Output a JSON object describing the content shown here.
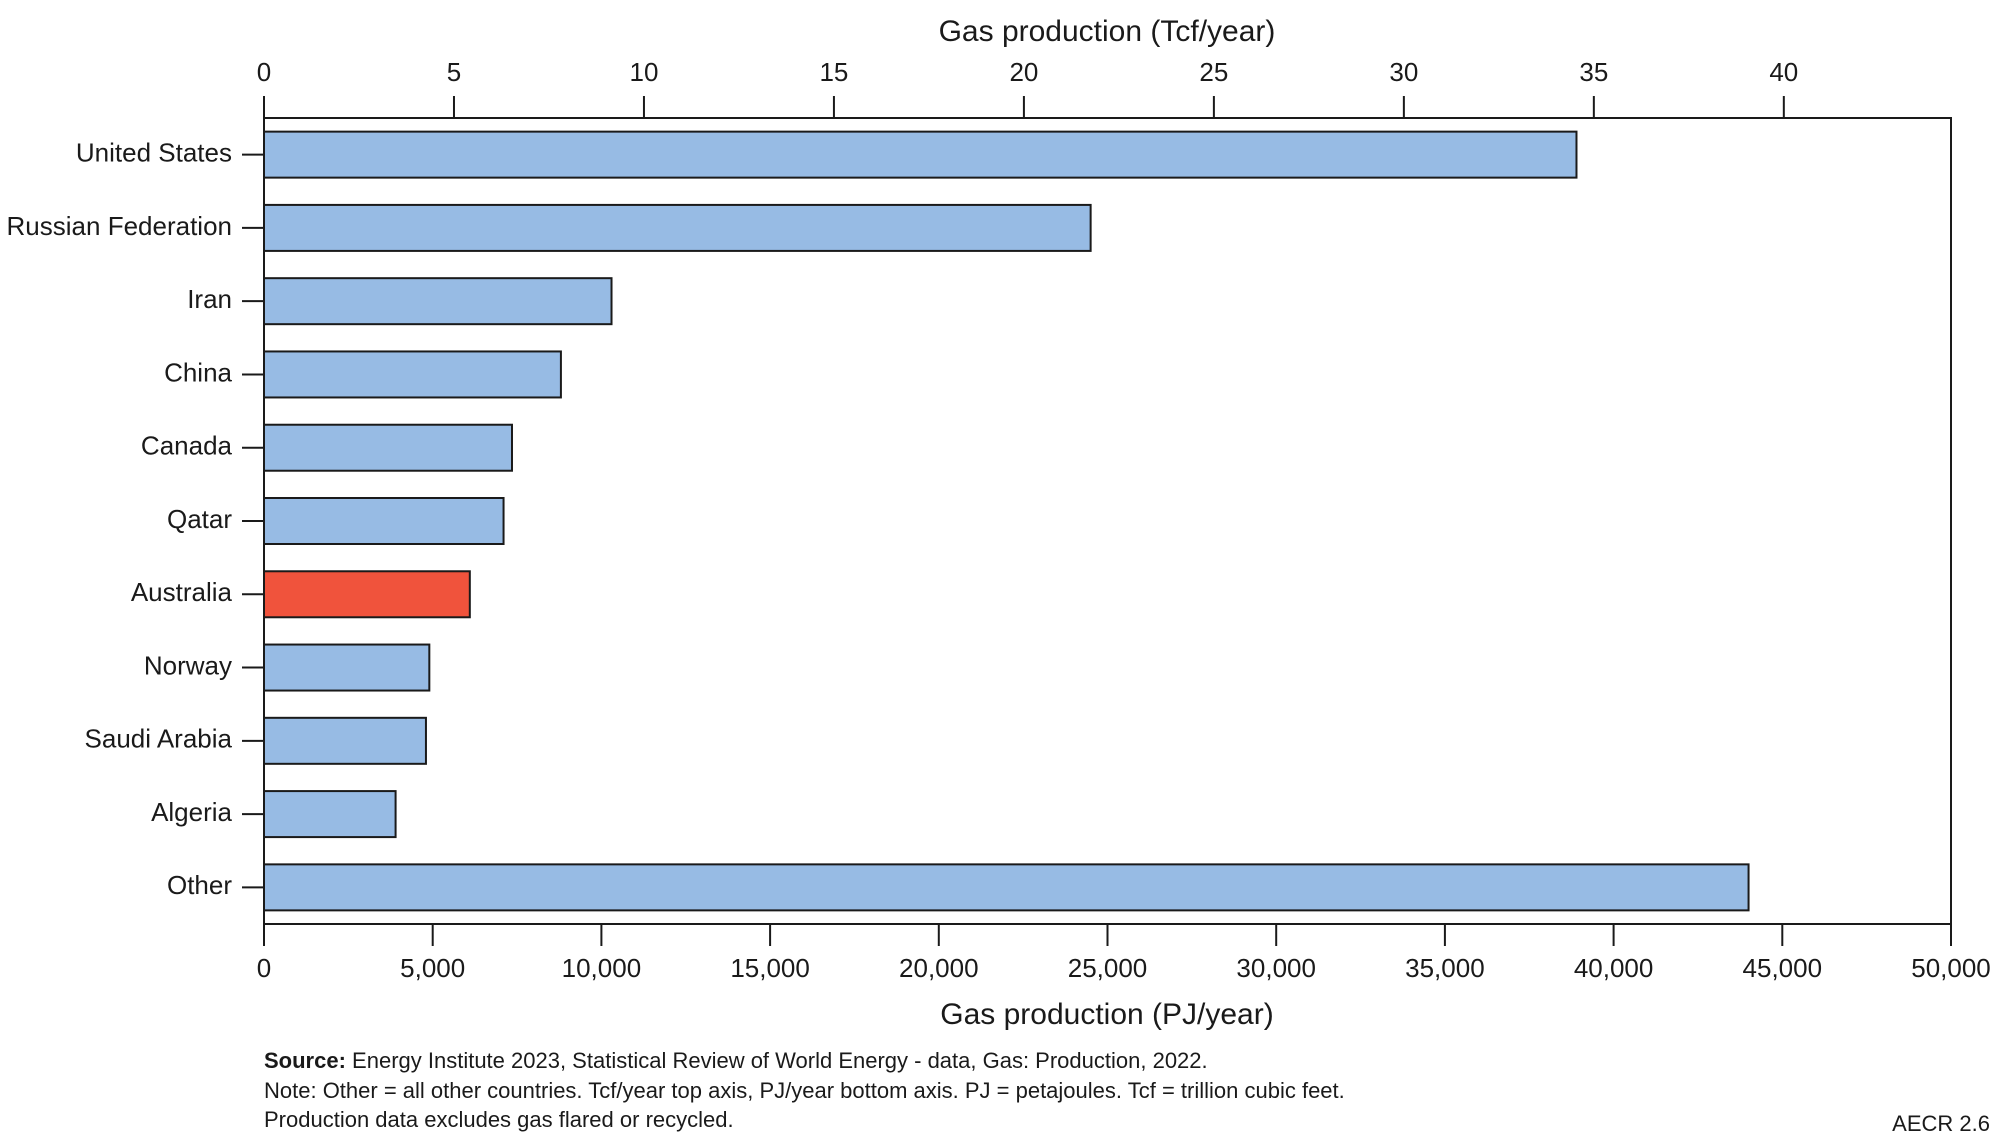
{
  "chart_data": {
    "type": "hbar",
    "title": "Gas production (Tcf/year)",
    "xlabel": "Gas production (PJ/year)",
    "categories": [
      "United States",
      "Russian Federation",
      "Iran",
      "China",
      "Canada",
      "Qatar",
      "Australia",
      "Norway",
      "Saudi Arabia",
      "Algeria",
      "Other"
    ],
    "values": [
      38900,
      24500,
      10300,
      8800,
      7350,
      7100,
      6100,
      4900,
      4800,
      3900,
      44000
    ],
    "colors": [
      "#97bbe4",
      "#97bbe4",
      "#97bbe4",
      "#97bbe4",
      "#97bbe4",
      "#97bbe4",
      "#f0533c",
      "#97bbe4",
      "#97bbe4",
      "#97bbe4",
      "#97bbe4"
    ],
    "xlim": [
      0,
      50000
    ],
    "xticks": [
      0,
      {
        "value": 5000,
        "label": "5,000"
      },
      {
        "value": 10000,
        "label": "10,000"
      },
      {
        "value": 15000,
        "label": "15,000"
      },
      {
        "value": 20000,
        "label": "20,000"
      },
      {
        "value": 25000,
        "label": "25,000"
      },
      {
        "value": 30000,
        "label": "30,000"
      },
      {
        "value": 35000,
        "label": "35,000"
      },
      {
        "value": 40000,
        "label": "40,000"
      },
      {
        "value": 45000,
        "label": "45,000"
      },
      {
        "value": 50000,
        "label": "50,000"
      }
    ],
    "x2lim": [
      0,
      44.4
    ],
    "x2ticks": [
      0,
      5,
      10,
      15,
      20,
      25,
      30,
      35,
      40
    ],
    "source_label": "Source:",
    "source": "Energy Institute 2023, Statistical Review of World Energy - data, Gas: Production, 2022.",
    "notes": [
      "Note: Other = all other countries. Tcf/year top axis, PJ/year bottom axis. PJ = petajoules. Tcf = trillion cubic feet.",
      "Production data excludes gas flared or recycled."
    ],
    "figure_id": "AECR 2.6"
  }
}
